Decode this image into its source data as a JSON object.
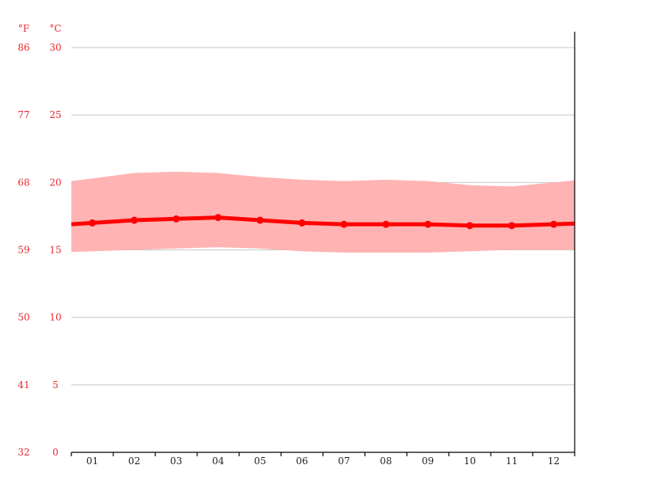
{
  "chart_data": {
    "type": "line",
    "units": {
      "fahrenheit": "°F",
      "celsius": "°C"
    },
    "categories": [
      "01",
      "02",
      "03",
      "04",
      "05",
      "06",
      "07",
      "08",
      "09",
      "10",
      "11",
      "12"
    ],
    "x_range": [
      0.5,
      12.5
    ],
    "y_range_celsius": [
      0,
      30
    ],
    "y_ticks_celsius": [
      "0",
      "5",
      "10",
      "15",
      "20",
      "25",
      "30"
    ],
    "y_ticks_fahrenheit": [
      "32",
      "41",
      "50",
      "59",
      "68",
      "77",
      "86"
    ],
    "grid": true,
    "series": [
      {
        "role": "mean",
        "color": "#ff0000",
        "values": [
          17.0,
          17.2,
          17.3,
          17.4,
          17.2,
          17.0,
          16.9,
          16.9,
          16.9,
          16.8,
          16.8,
          16.9
        ]
      },
      {
        "role": "min-max band",
        "color": "#ffb3b3",
        "max": [
          20.3,
          20.7,
          20.8,
          20.7,
          20.4,
          20.2,
          20.1,
          20.2,
          20.1,
          19.8,
          19.7,
          20.0
        ],
        "min": [
          14.9,
          15.0,
          15.1,
          15.2,
          15.1,
          14.9,
          14.8,
          14.8,
          14.8,
          14.9,
          15.0,
          15.0
        ]
      }
    ]
  }
}
